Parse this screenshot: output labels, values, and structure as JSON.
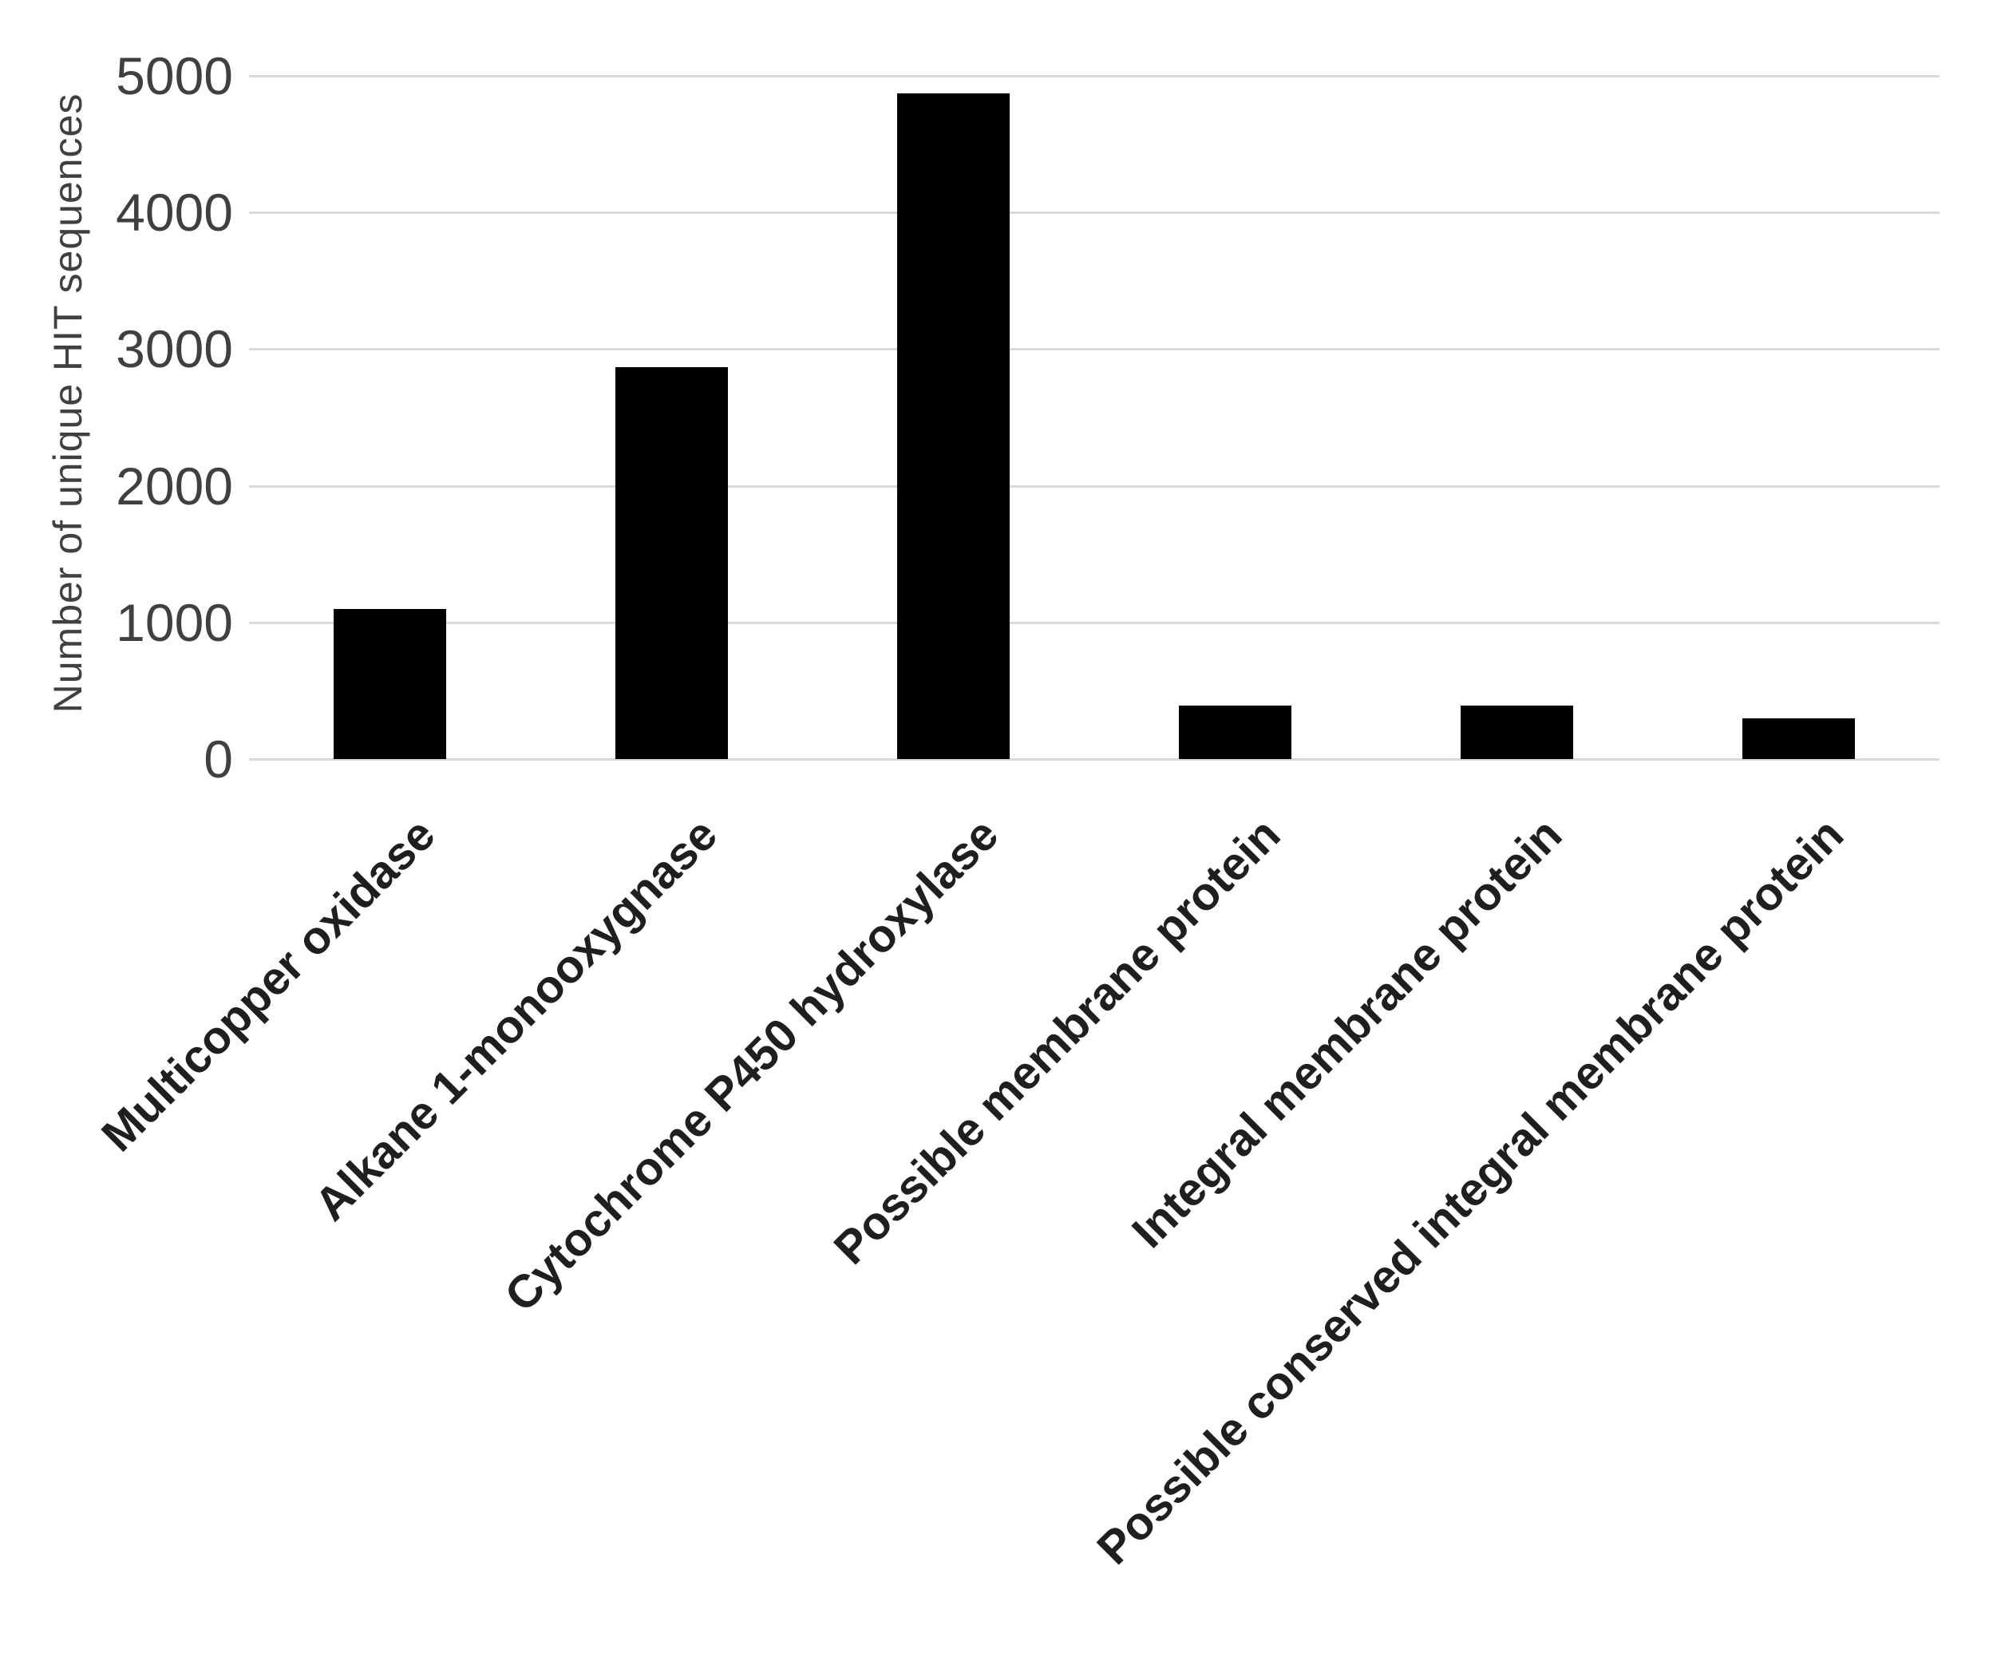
{
  "figure": {
    "background": "#ffffff"
  },
  "chart_data": {
    "type": "bar",
    "title": "",
    "categories": [
      "Multicopper oxidase",
      "Alkane 1-monooxygnase",
      "Cytochrome P450 hydroxylase",
      "Possible membrane protein",
      "Integral membrane protein",
      "Possible conserved integral membrane protein"
    ],
    "values": [
      1100,
      2870,
      4870,
      390,
      390,
      300
    ],
    "xlabel": "",
    "ylabel": "Number of unique HIT sequences",
    "ylim": [
      0,
      5000
    ],
    "yticks": [
      0,
      1000,
      2000,
      3000,
      4000,
      5000
    ],
    "grid": true,
    "legend_position": "none",
    "bar_color": "#000000",
    "gridline_color": "#d9d9d9",
    "axis_text_color": "#404040",
    "category_text_color": "#1f1f1f",
    "bar_width_fraction": 0.4,
    "label_rotation_deg": -45
  }
}
